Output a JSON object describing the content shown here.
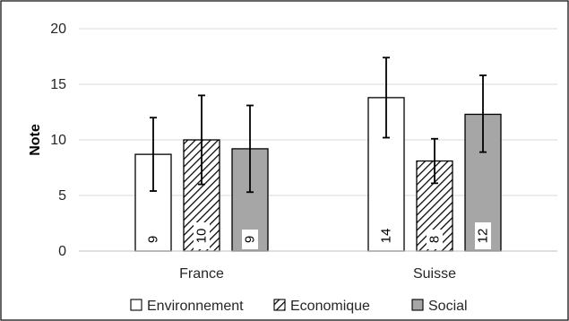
{
  "chart_data": {
    "type": "bar",
    "categories": [
      "France",
      "Suisse"
    ],
    "ylabel": "Note",
    "ylim": [
      0,
      20
    ],
    "yticks": [
      0,
      5,
      10,
      15,
      20
    ],
    "grid": true,
    "legend_position": "bottom",
    "series": [
      {
        "name": "Environnement",
        "values": [
          8.7,
          13.8
        ],
        "error_low": [
          5.4,
          10.2
        ],
        "error_high": [
          12.0,
          17.4
        ],
        "data_labels": [
          "9",
          "14"
        ],
        "pattern": "solid",
        "color": "#ffffff"
      },
      {
        "name": "Economique",
        "values": [
          10.0,
          8.1
        ],
        "error_low": [
          6.0,
          6.1
        ],
        "error_high": [
          14.0,
          10.1
        ],
        "data_labels": [
          "10",
          "8"
        ],
        "pattern": "hatch",
        "color": "#ffffff"
      },
      {
        "name": "Social",
        "values": [
          9.2,
          12.3
        ],
        "error_low": [
          5.3,
          8.9
        ],
        "error_high": [
          13.1,
          15.8
        ],
        "data_labels": [
          "9",
          "12"
        ],
        "pattern": "solid",
        "color": "#a6a6a6"
      }
    ]
  }
}
